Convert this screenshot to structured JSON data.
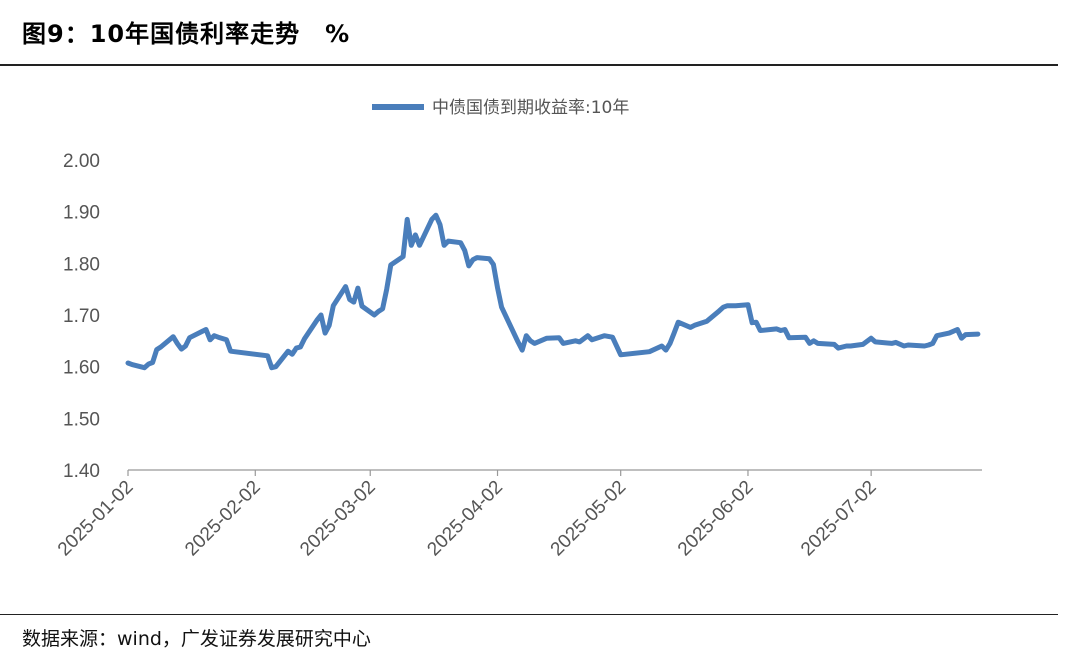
{
  "header": {
    "title": "图9：10年国债利率走势　%"
  },
  "footer": {
    "source": "数据来源：wind，广发证券发展研究中心"
  },
  "colors": {
    "series": "#4a7ebb",
    "axis": "#999999",
    "text": "#555555"
  },
  "chart_data": {
    "type": "line",
    "title": "图9：10年国债利率走势　%",
    "xlabel": "",
    "ylabel": "",
    "ylim": [
      1.4,
      2.0
    ],
    "yticks": [
      "1.40",
      "1.50",
      "1.60",
      "1.70",
      "1.80",
      "1.90",
      "2.00"
    ],
    "xlim": [
      "2025-01-02",
      "2025-07-29"
    ],
    "xticks": [
      "2025-01-02",
      "2025-02-02",
      "2025-03-02",
      "2025-04-02",
      "2025-05-02",
      "2025-06-02",
      "2025-07-02"
    ],
    "legend": "top-center",
    "grid": false,
    "series": [
      {
        "name": "中债国债到期收益率:10年",
        "color": "#4a7ebb",
        "points": [
          [
            "2025-01-02",
            1.607
          ],
          [
            "2025-01-03",
            1.604
          ],
          [
            "2025-01-06",
            1.598
          ],
          [
            "2025-01-07",
            1.605
          ],
          [
            "2025-01-08",
            1.608
          ],
          [
            "2025-01-09",
            1.633
          ],
          [
            "2025-01-10",
            1.638
          ],
          [
            "2025-01-13",
            1.658
          ],
          [
            "2025-01-14",
            1.645
          ],
          [
            "2025-01-15",
            1.634
          ],
          [
            "2025-01-16",
            1.64
          ],
          [
            "2025-01-17",
            1.656
          ],
          [
            "2025-01-20",
            1.668
          ],
          [
            "2025-01-21",
            1.672
          ],
          [
            "2025-01-22",
            1.652
          ],
          [
            "2025-01-23",
            1.66
          ],
          [
            "2025-01-24",
            1.657
          ],
          [
            "2025-01-26",
            1.652
          ],
          [
            "2025-01-27",
            1.63
          ],
          [
            "2025-02-05",
            1.621
          ],
          [
            "2025-02-06",
            1.598
          ],
          [
            "2025-02-07",
            1.6
          ],
          [
            "2025-02-10",
            1.63
          ],
          [
            "2025-02-11",
            1.624
          ],
          [
            "2025-02-12",
            1.636
          ],
          [
            "2025-02-13",
            1.638
          ],
          [
            "2025-02-14",
            1.654
          ],
          [
            "2025-02-17",
            1.69
          ],
          [
            "2025-02-18",
            1.7
          ],
          [
            "2025-02-19",
            1.665
          ],
          [
            "2025-02-20",
            1.68
          ],
          [
            "2025-02-21",
            1.718
          ],
          [
            "2025-02-24",
            1.755
          ],
          [
            "2025-02-25",
            1.73
          ],
          [
            "2025-02-26",
            1.725
          ],
          [
            "2025-02-27",
            1.752
          ],
          [
            "2025-02-28",
            1.717
          ],
          [
            "2025-03-03",
            1.7
          ],
          [
            "2025-03-04",
            1.707
          ],
          [
            "2025-03-05",
            1.712
          ],
          [
            "2025-03-06",
            1.75
          ],
          [
            "2025-03-07",
            1.797
          ],
          [
            "2025-03-10",
            1.813
          ],
          [
            "2025-03-11",
            1.885
          ],
          [
            "2025-03-12",
            1.835
          ],
          [
            "2025-03-13",
            1.855
          ],
          [
            "2025-03-14",
            1.835
          ],
          [
            "2025-03-17",
            1.885
          ],
          [
            "2025-03-18",
            1.893
          ],
          [
            "2025-03-19",
            1.875
          ],
          [
            "2025-03-20",
            1.835
          ],
          [
            "2025-03-21",
            1.843
          ],
          [
            "2025-03-24",
            1.84
          ],
          [
            "2025-03-25",
            1.825
          ],
          [
            "2025-03-26",
            1.795
          ],
          [
            "2025-03-27",
            1.807
          ],
          [
            "2025-03-28",
            1.811
          ],
          [
            "2025-03-31",
            1.809
          ],
          [
            "2025-04-01",
            1.798
          ],
          [
            "2025-04-02",
            1.753
          ],
          [
            "2025-04-03",
            1.715
          ],
          [
            "2025-04-07",
            1.648
          ],
          [
            "2025-04-08",
            1.632
          ],
          [
            "2025-04-09",
            1.66
          ],
          [
            "2025-04-10",
            1.65
          ],
          [
            "2025-04-11",
            1.645
          ],
          [
            "2025-04-14",
            1.655
          ],
          [
            "2025-04-17",
            1.656
          ],
          [
            "2025-04-18",
            1.645
          ],
          [
            "2025-04-21",
            1.65
          ],
          [
            "2025-04-22",
            1.648
          ],
          [
            "2025-04-24",
            1.66
          ],
          [
            "2025-04-25",
            1.652
          ],
          [
            "2025-04-28",
            1.66
          ],
          [
            "2025-04-30",
            1.657
          ],
          [
            "2025-05-02",
            1.623
          ],
          [
            "2025-05-09",
            1.629
          ],
          [
            "2025-05-12",
            1.64
          ],
          [
            "2025-05-13",
            1.632
          ],
          [
            "2025-05-14",
            1.645
          ],
          [
            "2025-05-15",
            1.665
          ],
          [
            "2025-05-16",
            1.686
          ],
          [
            "2025-05-19",
            1.676
          ],
          [
            "2025-05-20",
            1.68
          ],
          [
            "2025-05-23",
            1.688
          ],
          [
            "2025-05-26",
            1.708
          ],
          [
            "2025-05-27",
            1.715
          ],
          [
            "2025-05-28",
            1.718
          ],
          [
            "2025-05-30",
            1.718
          ],
          [
            "2025-06-02",
            1.72
          ],
          [
            "2025-06-03",
            1.685
          ],
          [
            "2025-06-04",
            1.686
          ],
          [
            "2025-06-05",
            1.67
          ],
          [
            "2025-06-09",
            1.673
          ],
          [
            "2025-06-10",
            1.67
          ],
          [
            "2025-06-11",
            1.672
          ],
          [
            "2025-06-12",
            1.656
          ],
          [
            "2025-06-16",
            1.657
          ],
          [
            "2025-06-17",
            1.645
          ],
          [
            "2025-06-18",
            1.65
          ],
          [
            "2025-06-19",
            1.645
          ],
          [
            "2025-06-23",
            1.643
          ],
          [
            "2025-06-24",
            1.636
          ],
          [
            "2025-06-26",
            1.64
          ],
          [
            "2025-06-27",
            1.64
          ],
          [
            "2025-06-30",
            1.643
          ],
          [
            "2025-07-02",
            1.655
          ],
          [
            "2025-07-03",
            1.648
          ],
          [
            "2025-07-07",
            1.645
          ],
          [
            "2025-07-08",
            1.647
          ],
          [
            "2025-07-10",
            1.64
          ],
          [
            "2025-07-11",
            1.642
          ],
          [
            "2025-07-15",
            1.64
          ],
          [
            "2025-07-16",
            1.642
          ],
          [
            "2025-07-17",
            1.645
          ],
          [
            "2025-07-18",
            1.66
          ],
          [
            "2025-07-21",
            1.665
          ],
          [
            "2025-07-23",
            1.672
          ],
          [
            "2025-07-24",
            1.655
          ],
          [
            "2025-07-25",
            1.662
          ],
          [
            "2025-07-28",
            1.663
          ]
        ]
      }
    ]
  }
}
